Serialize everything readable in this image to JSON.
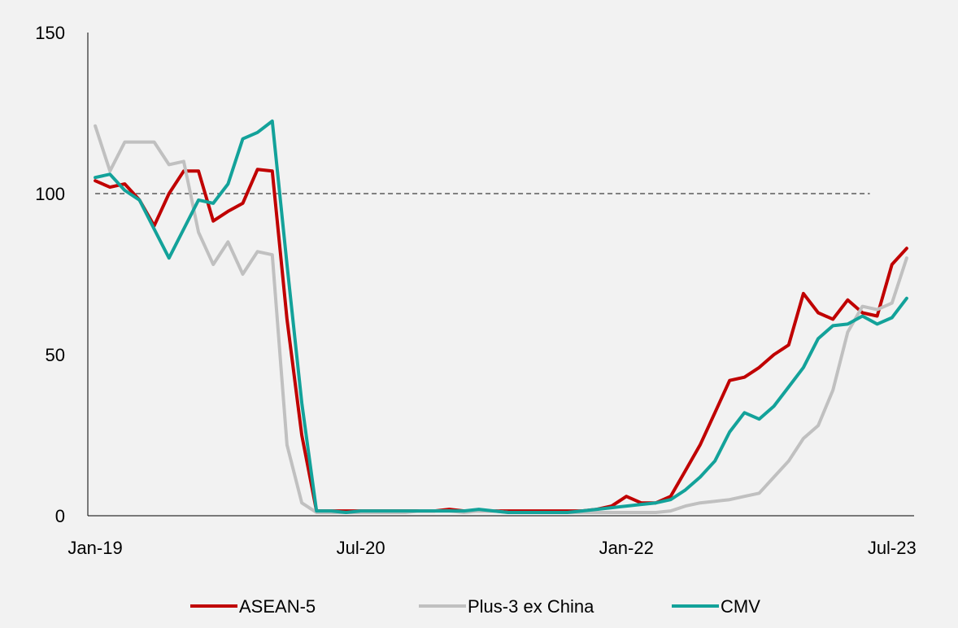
{
  "chart_data": {
    "type": "line",
    "title": "",
    "xlabel": "",
    "ylabel": "",
    "ylim": [
      0,
      150
    ],
    "yticks": [
      0,
      50,
      100,
      150
    ],
    "x_start": "2019-01",
    "x_tick_labels": [
      {
        "label": "Jan-19",
        "date": "2019-01"
      },
      {
        "label": "Jul-20",
        "date": "2020-07"
      },
      {
        "label": "Jan-22",
        "date": "2022-01"
      },
      {
        "label": "Jul-23",
        "date": "2023-07"
      }
    ],
    "grid": false,
    "legend_position": "bottom",
    "reference_line": {
      "y": 100,
      "style": "dashed",
      "color": "#808080"
    },
    "series": [
      {
        "name": "ASEAN-5",
        "color": "#c00000",
        "values": [
          104,
          102,
          103,
          98,
          90,
          100,
          107,
          107,
          91.5,
          94.5,
          97,
          107.5,
          107,
          61,
          25,
          1.5,
          1.5,
          1.5,
          1.5,
          1.5,
          1.5,
          1.5,
          1.5,
          1.5,
          2,
          1.5,
          1.5,
          1.5,
          1.5,
          1.5,
          1.5,
          1.5,
          1.5,
          1.5,
          2,
          3,
          6,
          4,
          4,
          6,
          14,
          22,
          32,
          42,
          43,
          46,
          50,
          53,
          69,
          63,
          61,
          67,
          63,
          62,
          78,
          83
        ]
      },
      {
        "name": "Plus-3 ex China",
        "color": "#c0c0c0",
        "values": [
          121,
          107,
          116,
          116,
          116,
          109,
          110,
          88,
          78,
          85,
          75,
          82,
          81,
          22,
          4,
          1,
          1,
          1,
          1,
          1,
          1,
          1,
          1.5,
          1.5,
          1.5,
          1,
          1.5,
          1.5,
          1,
          1,
          1,
          1,
          1,
          1,
          1,
          1,
          1,
          1,
          1,
          1.5,
          3,
          4,
          4.5,
          5,
          6,
          7,
          12,
          17,
          24,
          28,
          39,
          57,
          65,
          64,
          66,
          80
        ]
      },
      {
        "name": "CMV",
        "color": "#13a29a",
        "values": [
          105,
          106,
          101,
          98,
          89,
          80,
          89,
          98,
          97,
          103,
          117,
          119,
          122.5,
          78,
          35,
          1.5,
          1.5,
          1,
          1.5,
          1.5,
          1.5,
          1.5,
          1.5,
          1.5,
          1.5,
          1.5,
          2,
          1.5,
          1,
          1,
          1,
          1,
          1,
          1.5,
          2,
          2.5,
          3,
          3.5,
          4,
          5,
          8,
          12,
          17,
          26,
          32,
          30,
          34,
          40,
          46,
          55,
          59,
          59.5,
          62,
          59.5,
          61.5,
          67.5
        ]
      }
    ]
  }
}
